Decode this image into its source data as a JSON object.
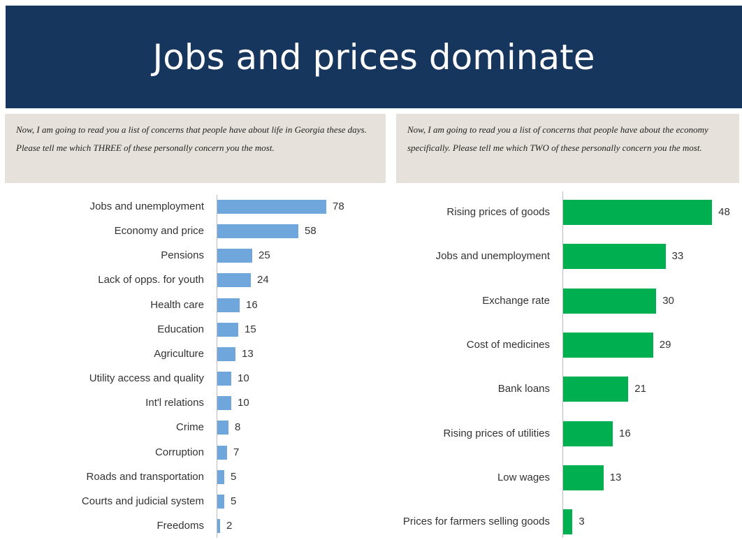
{
  "title": "Jobs and prices dominate",
  "chart_data": [
    {
      "type": "bar",
      "orientation": "horizontal",
      "subtitle": "Now, I am going to read you a list of concerns that people have about life in Georgia these days. Please tell me which THREE of these personally concern you the most.",
      "categories": [
        "Jobs and unemployment",
        "Economy and price",
        "Pensions",
        "Lack of opps. for youth",
        "Health care",
        "Education",
        "Agriculture",
        "Utility access and quality",
        "Int'l relations",
        "Crime",
        "Corruption",
        "Roads and transportation",
        "Courts and judicial system",
        "Freedoms"
      ],
      "values": [
        78,
        58,
        25,
        24,
        16,
        15,
        13,
        10,
        10,
        8,
        7,
        5,
        5,
        2
      ],
      "color": "#6fa6dc",
      "xlim": [
        0,
        100
      ]
    },
    {
      "type": "bar",
      "orientation": "horizontal",
      "subtitle": "Now, I am going to read you a list of concerns that people have about the economy specifically.  Please tell me which TWO of these personally concern you the most.",
      "categories": [
        "Rising prices of goods",
        "Jobs and unemployment",
        "Exchange rate",
        "Cost of medicines",
        "Bank loans",
        "Rising prices of utilities",
        "Low wages",
        "Prices for farmers selling goods"
      ],
      "values": [
        48,
        33,
        30,
        29,
        21,
        16,
        13,
        3
      ],
      "color": "#00b050",
      "xlim": [
        0,
        50
      ]
    }
  ]
}
